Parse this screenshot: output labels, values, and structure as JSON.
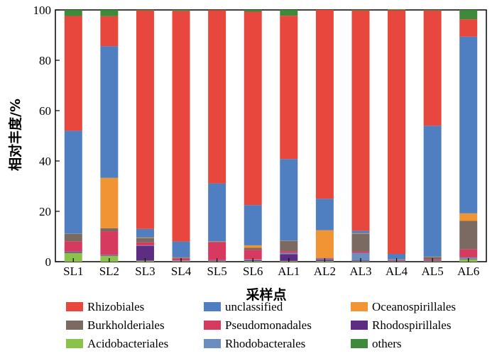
{
  "chart_data": {
    "type": "bar",
    "stacked": true,
    "xlabel": "采样点",
    "ylabel": "相对丰度/%",
    "ylim": [
      0,
      100
    ],
    "yticks": [
      "0",
      "20",
      "40",
      "60",
      "80",
      "100"
    ],
    "grid": false,
    "legend_position": "bottom",
    "categories": [
      "SL1",
      "SL2",
      "SL3",
      "SL4",
      "SL5",
      "SL6",
      "AL1",
      "AL2",
      "AL3",
      "AL4",
      "AL5",
      "AL6"
    ],
    "series": [
      {
        "name": "Acidobacteriales",
        "color": "#8bc34a",
        "values": [
          3.5,
          2.3,
          0.4,
          0.2,
          0.2,
          0.3,
          0.3,
          0.3,
          0.2,
          0.1,
          0.2,
          1.0
        ]
      },
      {
        "name": "Rhodospirillales",
        "color": "#5c2d82",
        "values": [
          0.3,
          0.2,
          5.9,
          0.1,
          0.2,
          0.3,
          2.7,
          0.4,
          0.3,
          0.1,
          0.2,
          0.2
        ]
      },
      {
        "name": "Rhodobacterales",
        "color": "#6c8ebf",
        "values": [
          0.2,
          0.2,
          0.2,
          0.2,
          0.2,
          0.3,
          0.5,
          0.3,
          3.0,
          0.2,
          0.2,
          0.5
        ]
      },
      {
        "name": "Pseudomonadales",
        "color": "#d63a5e",
        "values": [
          4.1,
          9.4,
          1.2,
          0.8,
          7.2,
          3.8,
          0.7,
          0.2,
          0.6,
          0.2,
          0.4,
          3.3
        ]
      },
      {
        "name": "Burkholderiales",
        "color": "#7a6a62",
        "values": [
          2.9,
          1.2,
          1.7,
          0.3,
          0.2,
          0.8,
          4.0,
          0.3,
          7.0,
          0.2,
          0.9,
          11.2
        ]
      },
      {
        "name": "Oceanospirillales",
        "color": "#f19433",
        "values": [
          0.1,
          20.0,
          0.2,
          0.1,
          0.1,
          1.0,
          0.1,
          11.0,
          0.2,
          0.1,
          0.1,
          3.0
        ]
      },
      {
        "name": "unclassified",
        "color": "#4f7fc0",
        "values": [
          40.9,
          52.3,
          3.4,
          6.3,
          23.0,
          16.0,
          32.5,
          12.5,
          1.0,
          2.2,
          52.0,
          70.2
        ]
      },
      {
        "name": "Rhizobiales",
        "color": "#e8473e",
        "values": [
          45.6,
          11.9,
          86.8,
          91.6,
          68.8,
          76.8,
          56.9,
          75.0,
          87.5,
          96.8,
          45.8,
          6.9
        ]
      },
      {
        "name": "others",
        "color": "#3f8a3a",
        "values": [
          2.4,
          2.5,
          0.2,
          0.4,
          0.1,
          0.7,
          2.3,
          0.0,
          0.2,
          0.3,
          0.2,
          3.7
        ]
      }
    ],
    "legend": [
      "Rhizobiales",
      "unclassified",
      "Oceanospirillales",
      "Burkholderiales",
      "Pseudomonadales",
      "Rhodospirillales",
      "Acidobacteriales",
      "Rhodobacterales",
      "others"
    ]
  }
}
